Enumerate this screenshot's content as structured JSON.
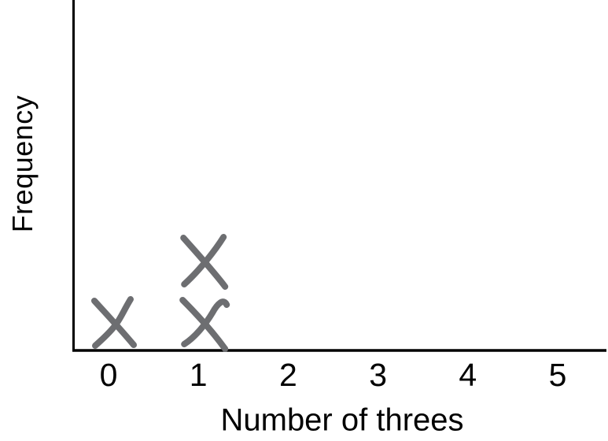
{
  "chart_data": {
    "type": "scatter",
    "subtype": "dot-plot (line plot) with hand-drawn X marks stacked by frequency",
    "title": "",
    "xlabel": "Number of threes",
    "ylabel": "Frequency",
    "categories": [
      0,
      1,
      2,
      3,
      4,
      5
    ],
    "tick_labels": [
      "0",
      "1",
      "2",
      "3",
      "4",
      "5"
    ],
    "frequencies": [
      1,
      2,
      0,
      0,
      0,
      0
    ],
    "points": [
      {
        "x": 0,
        "frequency": 1
      },
      {
        "x": 1,
        "frequency": 2
      }
    ],
    "y_tick_labels": [],
    "marker": "hand-drawn-x",
    "marker_color": "#6d6e71",
    "axis_color": "#000000",
    "background_color": "#ffffff",
    "grid": false,
    "legend": false
  }
}
